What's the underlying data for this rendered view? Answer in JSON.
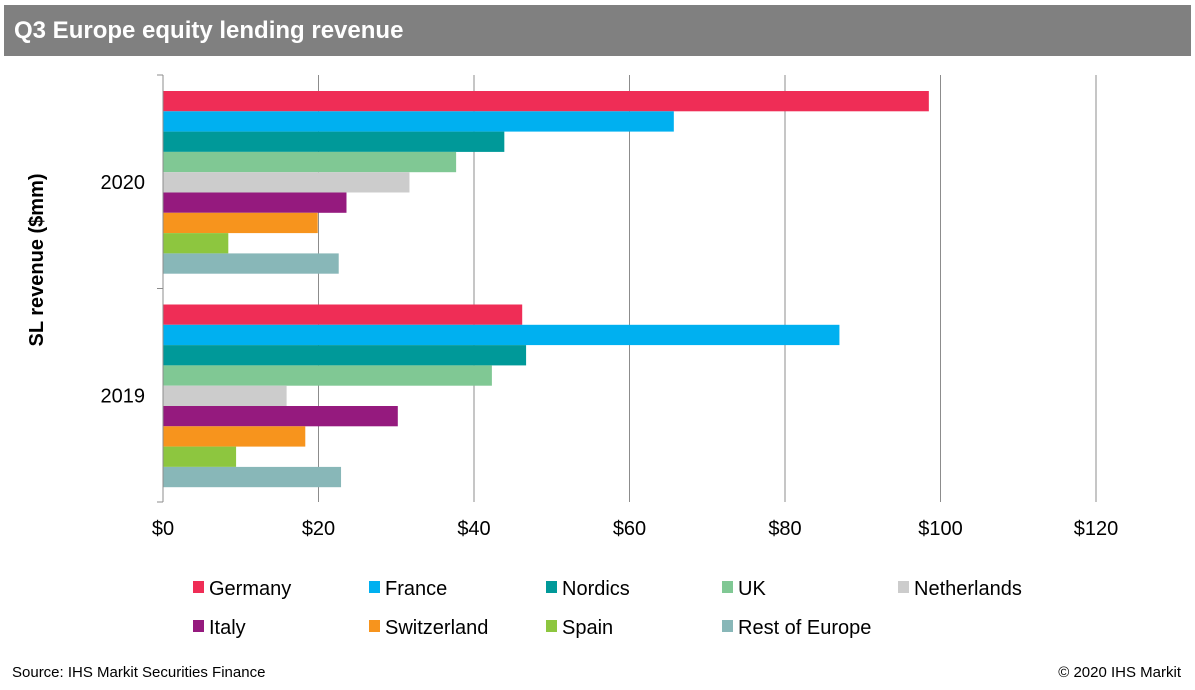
{
  "title": "Q3 Europe equity lending revenue",
  "source": "Source: IHS Markit Securities Finance",
  "copyright": "© 2020 IHS Markit",
  "chart_data": {
    "type": "bar",
    "orientation": "horizontal",
    "title": "Q3 Europe equity lending revenue",
    "ylabel": "SL revenue ($mm)",
    "xlabel": "",
    "categories": [
      "2020",
      "2019"
    ],
    "xlim": [
      0,
      120
    ],
    "xticks": [
      0,
      20,
      40,
      60,
      80,
      100,
      120
    ],
    "xtick_labels": [
      "$0",
      "$20",
      "$40",
      "$60",
      "$80",
      "$100",
      "$120"
    ],
    "grid": "vertical",
    "legend_position": "bottom",
    "series": [
      {
        "name": "Germany",
        "color": "#ef2d56",
        "values": [
          98.5,
          46.2
        ]
      },
      {
        "name": "France",
        "color": "#00b0f0",
        "values": [
          65.7,
          87.0
        ]
      },
      {
        "name": "Nordics",
        "color": "#009999",
        "values": [
          43.9,
          46.7
        ]
      },
      {
        "name": "UK",
        "color": "#80c894",
        "values": [
          37.7,
          42.3
        ]
      },
      {
        "name": "Netherlands",
        "color": "#cccccc",
        "values": [
          31.7,
          15.9
        ]
      },
      {
        "name": "Italy",
        "color": "#951a7e",
        "values": [
          23.6,
          30.2
        ]
      },
      {
        "name": "Switzerland",
        "color": "#f7941d",
        "values": [
          19.9,
          18.3
        ]
      },
      {
        "name": "Spain",
        "color": "#8dc63f",
        "values": [
          8.4,
          9.4
        ]
      },
      {
        "name": "Rest of Europe",
        "color": "#88b7b8",
        "values": [
          22.6,
          22.9
        ]
      }
    ]
  }
}
